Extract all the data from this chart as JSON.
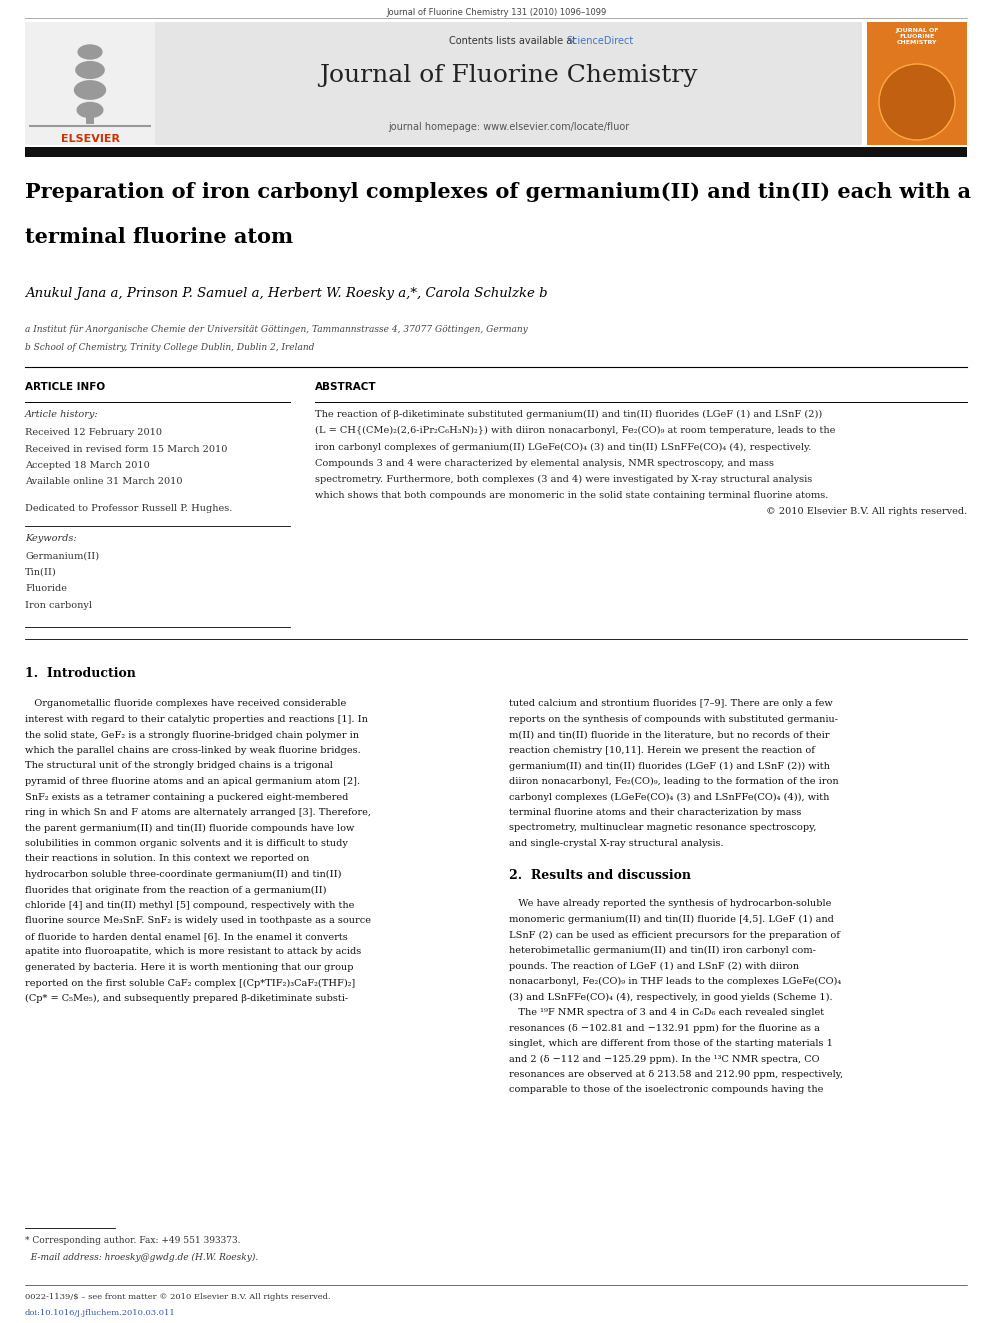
{
  "page_width": 9.92,
  "page_height": 13.23,
  "dpi": 100,
  "bg_color": "#ffffff",
  "header_journal_text": "Journal of Fluorine Chemistry 131 (2010) 1096–1099",
  "journal_name": "Journal of Fluorine Chemistry",
  "contents_text": "Contents lists available at",
  "sciencedirect_text": "ScienceDirect",
  "sciencedirect_color": "#4472c4",
  "homepage_text": "journal homepage: www.elsevier.com/locate/fluor",
  "header_bg": "#e8e8e8",
  "orange_color": "#e07820",
  "elsevier_red": "#cc3300",
  "article_title_line1": "Preparation of iron carbonyl complexes of germanium(II) and tin(II) each with a",
  "article_title_line2": "terminal fluorine atom",
  "authors_line": "Anukul Jana a, Prinson P. Samuel a, Herbert W. Roesky a,*, Carola Schulzke b",
  "affil_a": "a Institut für Anorganische Chemie der Universität Göttingen, Tammannstrasse 4, 37077 Göttingen, Germany",
  "affil_b": "b School of Chemistry, Trinity College Dublin, Dublin 2, Ireland",
  "article_info_title": "ARTICLE INFO",
  "abstract_title": "ABSTRACT",
  "article_history_label": "Article history:",
  "received": "Received 12 February 2010",
  "received_revised": "Received in revised form 15 March 2010",
  "accepted": "Accepted 18 March 2010",
  "available_online": "Available online 31 March 2010",
  "dedicated": "Dedicated to Professor Russell P. Hughes.",
  "keywords_label": "Keywords:",
  "keywords": [
    "Germanium(II)",
    "Tin(II)",
    "Fluoride",
    "Iron carbonyl"
  ],
  "abstract_lines": [
    "The reaction of β-diketiminate substituted germanium(II) and tin(II) fluorides (LGeF (1) and LSnF (2))",
    "(L = CH{(CMe)₂(2,6-iPr₂C₆H₃N)₂}) with diiron nonacarbonyl, Fe₂(CO)₉ at room temperature, leads to the",
    "iron carbonyl complexes of germanium(II) LGeFe(CO)₄ (3) and tin(II) LSnFFe(CO)₄ (4), respectively.",
    "Compounds 3 and 4 were characterized by elemental analysis, NMR spectroscopy, and mass",
    "spectrometry. Furthermore, both complexes (3 and 4) were investigated by X-ray structural analysis",
    "which shows that both compounds are monomeric in the solid state containing terminal fluorine atoms.",
    "© 2010 Elsevier B.V. All rights reserved."
  ],
  "section1_title": "1.  Introduction",
  "intro_left": [
    "   Organometallic fluoride complexes have received considerable",
    "interest with regard to their catalytic properties and reactions [1]. In",
    "the solid state, GeF₂ is a strongly fluorine-bridged chain polymer in",
    "which the parallel chains are cross-linked by weak fluorine bridges.",
    "The structural unit of the strongly bridged chains is a trigonal",
    "pyramid of three fluorine atoms and an apical germanium atom [2].",
    "SnF₂ exists as a tetramer containing a puckered eight-membered",
    "ring in which Sn and F atoms are alternately arranged [3]. Therefore,",
    "the parent germanium(II) and tin(II) fluoride compounds have low",
    "solubilities in common organic solvents and it is difficult to study",
    "their reactions in solution. In this context we reported on",
    "hydrocarbon soluble three-coordinate germanium(II) and tin(II)",
    "fluorides that originate from the reaction of a germanium(II)",
    "chloride [4] and tin(II) methyl [5] compound, respectively with the",
    "fluorine source Me₃SnF. SnF₂ is widely used in toothpaste as a source",
    "of fluoride to harden dental enamel [6]. In the enamel it converts",
    "apatite into fluoroapatite, which is more resistant to attack by acids",
    "generated by bacteria. Here it is worth mentioning that our group",
    "reported on the first soluble CaF₂ complex [(Cp*TIF₂)₃CaF₂(THF)₂]",
    "(Cp* = C₅Me₅), and subsequently prepared β-diketiminate substi-"
  ],
  "intro_right": [
    "tuted calcium and strontium fluorides [7–9]. There are only a few",
    "reports on the synthesis of compounds with substituted germaniu-",
    "m(II) and tin(II) fluoride in the literature, but no records of their",
    "reaction chemistry [10,11]. Herein we present the reaction of",
    "germanium(II) and tin(II) fluorides (LGeF (1) and LSnF (2)) with",
    "diiron nonacarbonyl, Fe₂(CO)₉, leading to the formation of the iron",
    "carbonyl complexes (LGeFe(CO)₄ (3) and LSnFFe(CO)₄ (4)), with",
    "terminal fluorine atoms and their characterization by mass",
    "spectrometry, multinuclear magnetic resonance spectroscopy,",
    "and single-crystal X-ray structural analysis."
  ],
  "section2_title": "2.  Results and discussion",
  "results_lines": [
    "   We have already reported the synthesis of hydrocarbon-soluble",
    "monomeric germanium(II) and tin(II) fluoride [4,5]. LGeF (1) and",
    "LSnF (2) can be used as efficient precursors for the preparation of",
    "heterobimetallic germanium(II) and tin(II) iron carbonyl com-",
    "pounds. The reaction of LGeF (1) and LSnF (2) with diiron",
    "nonacarbonyl, Fe₂(CO)₉ in THF leads to the complexes LGeFe(CO)₄",
    "(3) and LSnFFe(CO)₄ (4), respectively, in good yields (Scheme 1).",
    "   The ¹⁹F NMR spectra of 3 and 4 in C₆D₆ each revealed singlet",
    "resonances (δ −102.81 and −132.91 ppm) for the fluorine as a",
    "singlet, which are different from those of the starting materials 1",
    "and 2 (δ −112 and −125.29 ppm). In the ¹³C NMR spectra, CO",
    "resonances are observed at δ 213.58 and 212.90 ppm, respectively,",
    "comparable to those of the isoelectronic compounds having the"
  ],
  "footnote1": "* Corresponding author. Fax: +49 551 393373.",
  "footnote2": "  E-mail address: hroesky@gwdg.de (H.W. Roesky).",
  "bottom1": "0022-1139/$ – see front matter © 2010 Elsevier B.V. All rights reserved.",
  "bottom2": "doi:10.1016/j.jfluchem.2010.03.011"
}
